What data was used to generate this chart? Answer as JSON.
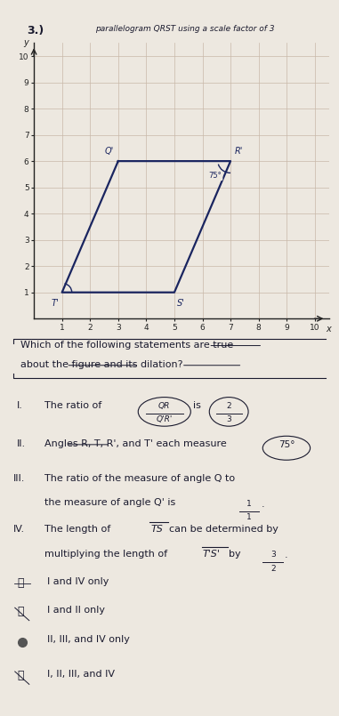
{
  "paper_bg": "#ede8e0",
  "graph_bg": "#ede8e0",
  "grid_color": "#c8b8a8",
  "axis_color": "#222222",
  "shape_color": "#1a2560",
  "shape_linewidth": 1.6,
  "Q_prime": [
    3,
    6
  ],
  "R_prime": [
    7,
    6
  ],
  "S_prime": [
    5,
    1
  ],
  "T_prime": [
    1,
    1
  ],
  "xlim": [
    0,
    10.5
  ],
  "ylim": [
    0,
    10.5
  ],
  "xticks": [
    1,
    2,
    3,
    4,
    5,
    6,
    7,
    8,
    9,
    10
  ],
  "yticks": [
    1,
    2,
    3,
    4,
    5,
    6,
    7,
    8,
    9,
    10
  ],
  "text_color": "#1a1a2e",
  "header": "parallelogram QRST using a scale factor of 3"
}
